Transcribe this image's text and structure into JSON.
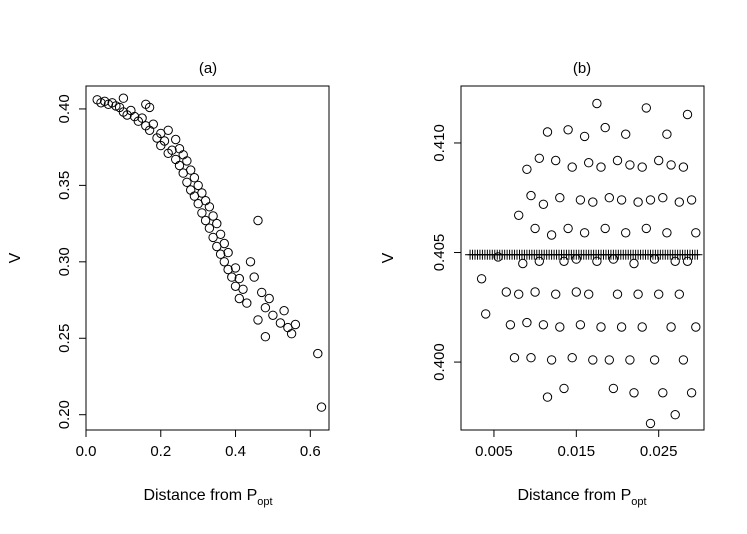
{
  "chart_data": [
    {
      "type": "scatter",
      "title": "(a)",
      "xlabel_main": "Distance from P",
      "xlabel_sub": "opt",
      "ylabel": "V",
      "xlim": [
        0.0,
        0.65
      ],
      "ylim": [
        0.19,
        0.415
      ],
      "xticks": [
        "0.0",
        "0.2",
        "0.4",
        "0.6"
      ],
      "yticks": [
        "0.20",
        "0.25",
        "0.30",
        "0.35",
        "0.40"
      ],
      "marker": "circle",
      "points": [
        [
          0.03,
          0.406
        ],
        [
          0.04,
          0.404
        ],
        [
          0.05,
          0.405
        ],
        [
          0.06,
          0.403
        ],
        [
          0.07,
          0.404
        ],
        [
          0.08,
          0.402
        ],
        [
          0.09,
          0.401
        ],
        [
          0.1,
          0.407
        ],
        [
          0.1,
          0.398
        ],
        [
          0.11,
          0.396
        ],
        [
          0.12,
          0.399
        ],
        [
          0.13,
          0.395
        ],
        [
          0.14,
          0.392
        ],
        [
          0.15,
          0.394
        ],
        [
          0.16,
          0.403
        ],
        [
          0.16,
          0.389
        ],
        [
          0.17,
          0.401
        ],
        [
          0.17,
          0.386
        ],
        [
          0.18,
          0.39
        ],
        [
          0.19,
          0.381
        ],
        [
          0.2,
          0.384
        ],
        [
          0.2,
          0.376
        ],
        [
          0.21,
          0.379
        ],
        [
          0.22,
          0.371
        ],
        [
          0.22,
          0.386
        ],
        [
          0.23,
          0.373
        ],
        [
          0.24,
          0.367
        ],
        [
          0.24,
          0.38
        ],
        [
          0.25,
          0.363
        ],
        [
          0.25,
          0.374
        ],
        [
          0.26,
          0.358
        ],
        [
          0.26,
          0.37
        ],
        [
          0.27,
          0.352
        ],
        [
          0.27,
          0.366
        ],
        [
          0.28,
          0.347
        ],
        [
          0.28,
          0.36
        ],
        [
          0.29,
          0.343
        ],
        [
          0.29,
          0.355
        ],
        [
          0.3,
          0.338
        ],
        [
          0.3,
          0.35
        ],
        [
          0.31,
          0.332
        ],
        [
          0.31,
          0.345
        ],
        [
          0.32,
          0.327
        ],
        [
          0.32,
          0.34
        ],
        [
          0.33,
          0.322
        ],
        [
          0.33,
          0.336
        ],
        [
          0.34,
          0.316
        ],
        [
          0.34,
          0.33
        ],
        [
          0.35,
          0.31
        ],
        [
          0.35,
          0.325
        ],
        [
          0.36,
          0.305
        ],
        [
          0.36,
          0.318
        ],
        [
          0.37,
          0.3
        ],
        [
          0.37,
          0.312
        ],
        [
          0.38,
          0.295
        ],
        [
          0.38,
          0.306
        ],
        [
          0.39,
          0.29
        ],
        [
          0.4,
          0.296
        ],
        [
          0.4,
          0.284
        ],
        [
          0.41,
          0.276
        ],
        [
          0.41,
          0.289
        ],
        [
          0.42,
          0.282
        ],
        [
          0.43,
          0.273
        ],
        [
          0.44,
          0.3
        ],
        [
          0.45,
          0.29
        ],
        [
          0.46,
          0.262
        ],
        [
          0.46,
          0.327
        ],
        [
          0.47,
          0.28
        ],
        [
          0.48,
          0.27
        ],
        [
          0.48,
          0.251
        ],
        [
          0.49,
          0.276
        ],
        [
          0.5,
          0.265
        ],
        [
          0.52,
          0.26
        ],
        [
          0.53,
          0.268
        ],
        [
          0.54,
          0.257
        ],
        [
          0.55,
          0.253
        ],
        [
          0.56,
          0.259
        ],
        [
          0.62,
          0.24
        ],
        [
          0.63,
          0.205
        ]
      ]
    },
    {
      "type": "scatter",
      "title": "(b)",
      "xlabel_main": "Distance from P",
      "xlabel_sub": "opt",
      "ylabel": "V",
      "xlim": [
        0.001,
        0.0305
      ],
      "ylim": [
        0.3969,
        0.4126
      ],
      "xticks": [
        "0.005",
        "0.015",
        "0.025"
      ],
      "yticks": [
        "0.400",
        "0.405",
        "0.410"
      ],
      "marker": "circle",
      "points": [
        [
          0.0035,
          0.4038
        ],
        [
          0.004,
          0.4022
        ],
        [
          0.0055,
          0.4048
        ],
        [
          0.0065,
          0.4032
        ],
        [
          0.007,
          0.4017
        ],
        [
          0.0075,
          0.4002
        ],
        [
          0.008,
          0.4067
        ],
        [
          0.008,
          0.4031
        ],
        [
          0.0085,
          0.4045
        ],
        [
          0.009,
          0.4088
        ],
        [
          0.009,
          0.4018
        ],
        [
          0.0095,
          0.4076
        ],
        [
          0.0095,
          0.4002
        ],
        [
          0.01,
          0.4061
        ],
        [
          0.01,
          0.4032
        ],
        [
          0.0105,
          0.4093
        ],
        [
          0.0105,
          0.4046
        ],
        [
          0.011,
          0.4072
        ],
        [
          0.011,
          0.4017
        ],
        [
          0.0115,
          0.4105
        ],
        [
          0.0115,
          0.3984
        ],
        [
          0.012,
          0.4058
        ],
        [
          0.012,
          0.4001
        ],
        [
          0.0125,
          0.4092
        ],
        [
          0.0125,
          0.4031
        ],
        [
          0.013,
          0.4075
        ],
        [
          0.013,
          0.4016
        ],
        [
          0.0135,
          0.4046
        ],
        [
          0.0135,
          0.3988
        ],
        [
          0.014,
          0.4106
        ],
        [
          0.014,
          0.4061
        ],
        [
          0.0145,
          0.4089
        ],
        [
          0.0145,
          0.4002
        ],
        [
          0.015,
          0.4047
        ],
        [
          0.015,
          0.4032
        ],
        [
          0.0155,
          0.4074
        ],
        [
          0.0155,
          0.4017
        ],
        [
          0.016,
          0.4103
        ],
        [
          0.016,
          0.4059
        ],
        [
          0.0165,
          0.4091
        ],
        [
          0.0165,
          0.4031
        ],
        [
          0.017,
          0.4073
        ],
        [
          0.017,
          0.4001
        ],
        [
          0.0175,
          0.4118
        ],
        [
          0.0175,
          0.4046
        ],
        [
          0.018,
          0.4089
        ],
        [
          0.018,
          0.4016
        ],
        [
          0.0185,
          0.4107
        ],
        [
          0.0185,
          0.4061
        ],
        [
          0.019,
          0.4075
        ],
        [
          0.019,
          0.4001
        ],
        [
          0.0195,
          0.4047
        ],
        [
          0.0195,
          0.3988
        ],
        [
          0.02,
          0.4092
        ],
        [
          0.02,
          0.4031
        ],
        [
          0.0205,
          0.4074
        ],
        [
          0.0205,
          0.4016
        ],
        [
          0.021,
          0.4104
        ],
        [
          0.021,
          0.4059
        ],
        [
          0.0215,
          0.409
        ],
        [
          0.0215,
          0.4001
        ],
        [
          0.022,
          0.4045
        ],
        [
          0.022,
          0.3986
        ],
        [
          0.0225,
          0.4073
        ],
        [
          0.0225,
          0.4031
        ],
        [
          0.023,
          0.4089
        ],
        [
          0.023,
          0.4016
        ],
        [
          0.0235,
          0.4116
        ],
        [
          0.0235,
          0.4061
        ],
        [
          0.024,
          0.4074
        ],
        [
          0.024,
          0.3972
        ],
        [
          0.0245,
          0.4047
        ],
        [
          0.0245,
          0.4001
        ],
        [
          0.025,
          0.4092
        ],
        [
          0.025,
          0.4031
        ],
        [
          0.0255,
          0.4075
        ],
        [
          0.0255,
          0.3986
        ],
        [
          0.026,
          0.4104
        ],
        [
          0.026,
          0.4059
        ],
        [
          0.0265,
          0.409
        ],
        [
          0.0265,
          0.4016
        ],
        [
          0.027,
          0.4046
        ],
        [
          0.027,
          0.3976
        ],
        [
          0.0275,
          0.4073
        ],
        [
          0.0275,
          0.4031
        ],
        [
          0.028,
          0.4089
        ],
        [
          0.028,
          0.4001
        ],
        [
          0.0285,
          0.4113
        ],
        [
          0.0285,
          0.4046
        ],
        [
          0.029,
          0.4074
        ],
        [
          0.029,
          0.3986
        ],
        [
          0.0295,
          0.4059
        ],
        [
          0.0295,
          0.4016
        ]
      ],
      "plus_marks": {
        "y": 0.4049,
        "x": [
          0.0021,
          0.0024,
          0.0027,
          0.003,
          0.0033,
          0.0036,
          0.0039,
          0.0042,
          0.0045,
          0.0048,
          0.0051,
          0.0054,
          0.0057,
          0.006,
          0.0063,
          0.0066,
          0.0069,
          0.0072,
          0.0075,
          0.0078,
          0.0081,
          0.0084,
          0.0087,
          0.009,
          0.0093,
          0.0096,
          0.0099,
          0.0102,
          0.0105,
          0.0108,
          0.0111,
          0.0114,
          0.0117,
          0.012,
          0.0123,
          0.0126,
          0.0129,
          0.0132,
          0.0135,
          0.0138,
          0.0141,
          0.0144,
          0.0147,
          0.015,
          0.0153,
          0.0156,
          0.0159,
          0.0162,
          0.0165,
          0.0168,
          0.0171,
          0.0174,
          0.0177,
          0.018,
          0.0183,
          0.0186,
          0.0189,
          0.0192,
          0.0195,
          0.0198,
          0.0201,
          0.0204,
          0.0207,
          0.021,
          0.0213,
          0.0216,
          0.0219,
          0.0222,
          0.0225,
          0.0228,
          0.0231,
          0.0234,
          0.0237,
          0.024,
          0.0243,
          0.0246,
          0.0249,
          0.0252,
          0.0255,
          0.0258,
          0.0261,
          0.0264,
          0.0267,
          0.027,
          0.0273,
          0.0276,
          0.0279,
          0.0282,
          0.0285,
          0.0288,
          0.0291,
          0.0294,
          0.0297
        ]
      }
    }
  ]
}
